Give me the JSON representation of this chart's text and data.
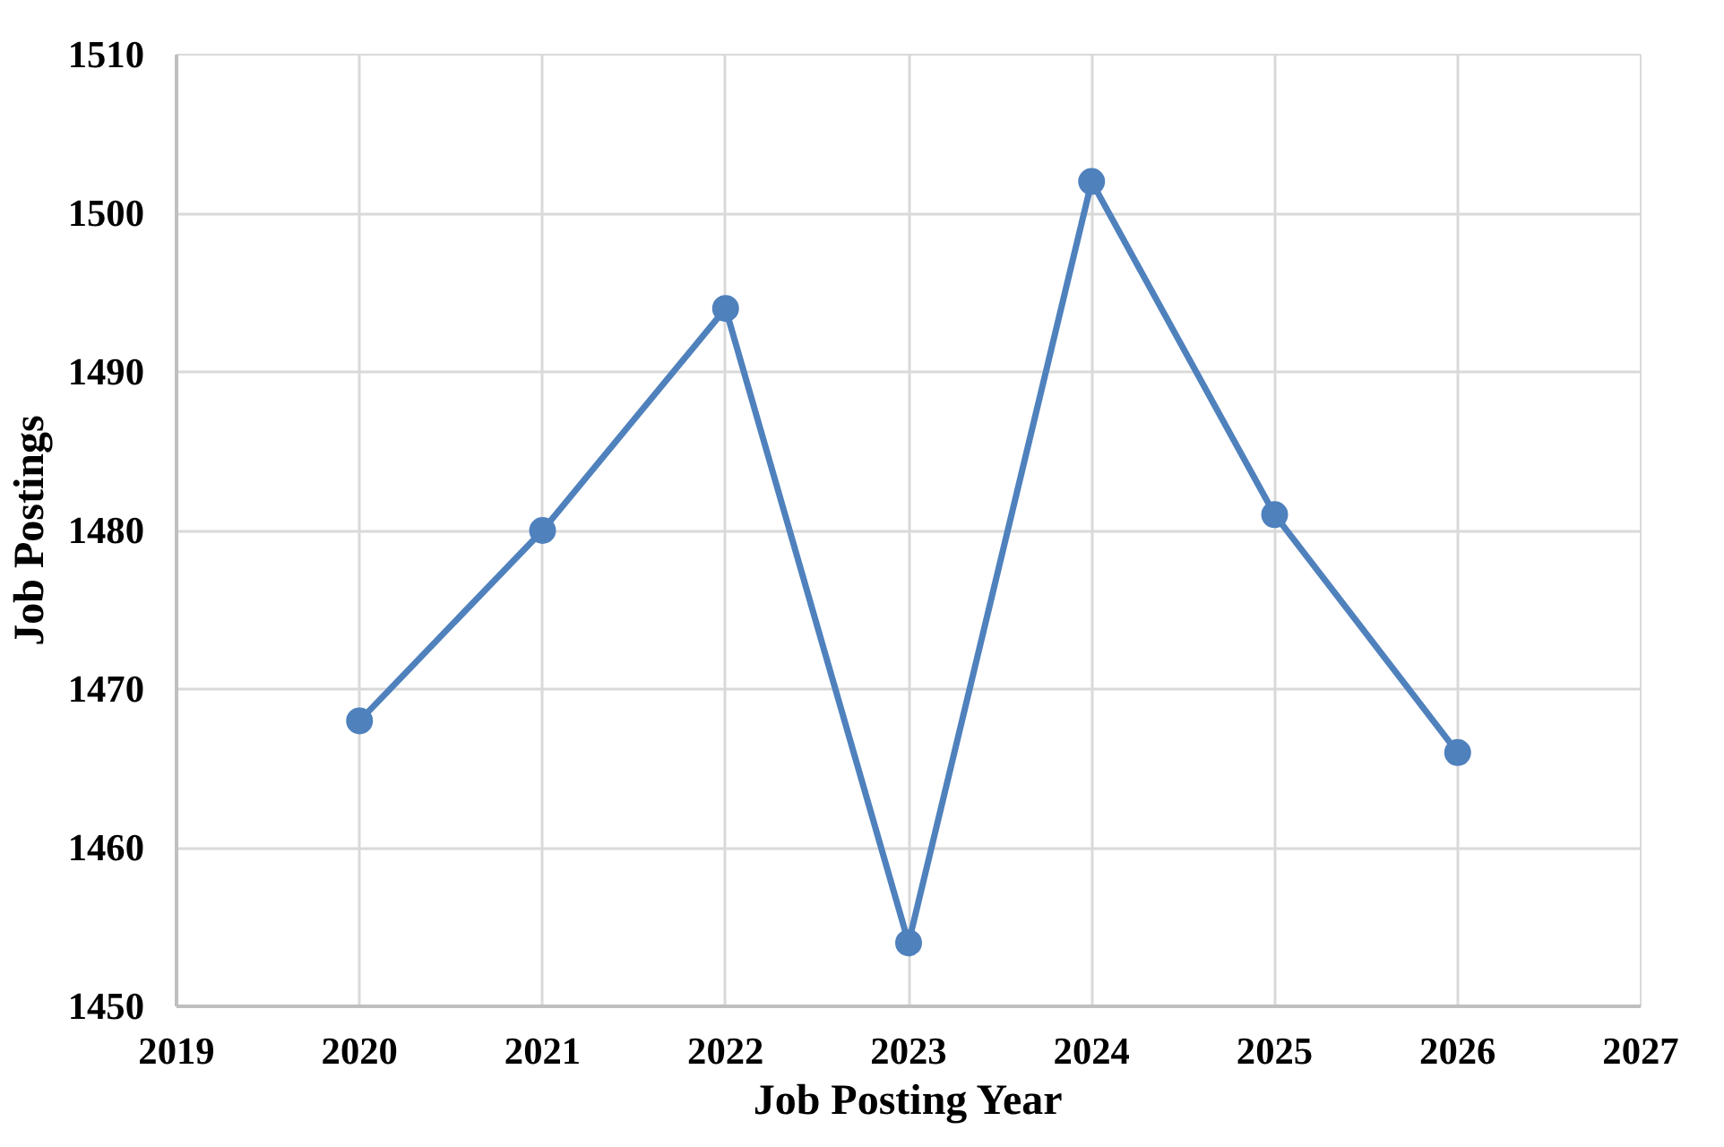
{
  "chart_data": {
    "type": "line",
    "xlabel": "Job Posting Year",
    "ylabel": "Job Postings",
    "x": [
      2020,
      2021,
      2022,
      2023,
      2024,
      2025,
      2026
    ],
    "series": [
      {
        "color": "#4f81bd",
        "values": [
          1468,
          1480,
          1494,
          1454,
          1502,
          1481,
          1466
        ]
      }
    ],
    "xlim": [
      2019,
      2027
    ],
    "xticks": [
      2019,
      2020,
      2021,
      2022,
      2023,
      2024,
      2025,
      2026,
      2027
    ],
    "ylim": [
      1450,
      1510
    ],
    "yticks": [
      1450,
      1460,
      1470,
      1480,
      1490,
      1500,
      1510
    ],
    "grid": true,
    "marker": "circle",
    "line_style": "solid"
  }
}
